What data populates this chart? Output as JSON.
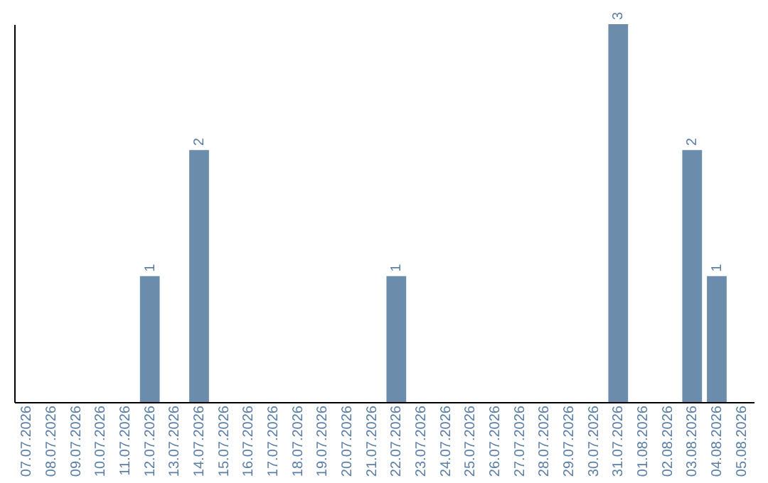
{
  "chart_data": {
    "type": "bar",
    "categories": [
      "07.07.2026",
      "08.07.2026",
      "09.07.2026",
      "10.07.2026",
      "11.07.2026",
      "12.07.2026",
      "13.07.2026",
      "14.07.2026",
      "15.07.2026",
      "16.07.2026",
      "17.07.2026",
      "18.07.2026",
      "19.07.2026",
      "20.07.2026",
      "21.07.2026",
      "22.07.2026",
      "23.07.2026",
      "24.07.2026",
      "25.07.2026",
      "26.07.2026",
      "27.07.2026",
      "28.07.2026",
      "29.07.2026",
      "30.07.2026",
      "31.07.2026",
      "01.08.2026",
      "02.08.2026",
      "03.08.2026",
      "04.08.2026",
      "05.08.2026"
    ],
    "values": [
      0,
      0,
      0,
      0,
      0,
      1,
      0,
      2,
      0,
      0,
      0,
      0,
      0,
      0,
      0,
      1,
      0,
      0,
      0,
      0,
      0,
      0,
      0,
      0,
      3,
      0,
      0,
      2,
      1,
      0
    ],
    "color": "#6b8cab",
    "value_labels": [
      null,
      null,
      null,
      null,
      null,
      "1",
      null,
      "2",
      null,
      null,
      null,
      null,
      null,
      null,
      null,
      "1",
      null,
      null,
      null,
      null,
      null,
      null,
      null,
      null,
      "3",
      null,
      null,
      "2",
      "1",
      null
    ],
    "grid": false,
    "tick_labels": "x"
  }
}
